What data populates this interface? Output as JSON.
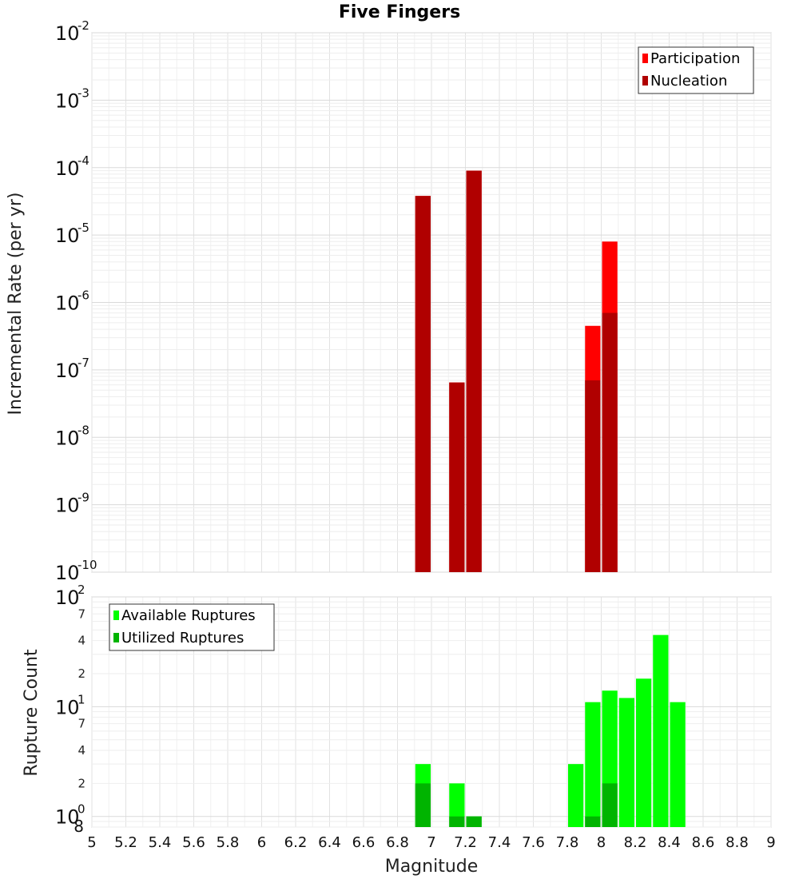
{
  "chart_data": [
    {
      "type": "bar",
      "title": "Five Fingers",
      "xlabel": "",
      "ylabel": "Incremental Rate (per yr)",
      "yscale": "log",
      "ylim": [
        1e-10,
        0.01
      ],
      "xlim": [
        5,
        9
      ],
      "bar_width": 0.1,
      "grid": true,
      "legend_position": "top-right",
      "ytick_labels": [
        {
          "base": "10",
          "exp": "-10",
          "value": 1e-10
        },
        {
          "base": "10",
          "exp": "-9",
          "value": 1e-09
        },
        {
          "base": "10",
          "exp": "-8",
          "value": 1e-08
        },
        {
          "base": "10",
          "exp": "-7",
          "value": 1e-07
        },
        {
          "base": "10",
          "exp": "-6",
          "value": 1e-06
        },
        {
          "base": "10",
          "exp": "-5",
          "value": 1e-05
        },
        {
          "base": "10",
          "exp": "-4",
          "value": 0.0001
        },
        {
          "base": "10",
          "exp": "-3",
          "value": 0.001
        },
        {
          "base": "10",
          "exp": "-2",
          "value": 0.01
        }
      ],
      "series": [
        {
          "name": "Participation",
          "color": "#ff0000",
          "x": [
            6.95,
            7.15,
            7.25,
            7.95,
            8.05
          ],
          "values": [
            3.8e-05,
            6.5e-08,
            9e-05,
            4.5e-07,
            8e-06
          ]
        },
        {
          "name": "Nucleation",
          "color": "#b00000",
          "x": [
            6.95,
            7.15,
            7.25,
            7.95,
            8.05
          ],
          "values": [
            3.8e-05,
            6.5e-08,
            9e-05,
            7e-08,
            7e-07
          ]
        }
      ]
    },
    {
      "type": "bar",
      "title": "",
      "xlabel": "Magnitude",
      "ylabel": "Rupture Count",
      "yscale": "log",
      "ylim": [
        0.8,
        100
      ],
      "xlim": [
        5,
        9
      ],
      "bar_width": 0.1,
      "grid": true,
      "legend_position": "top-left",
      "xticks": [
        "5",
        "5.2",
        "5.4",
        "5.6",
        "5.8",
        "6",
        "6.2",
        "6.4",
        "6.6",
        "6.8",
        "7",
        "7.2",
        "7.4",
        "7.6",
        "7.8",
        "8",
        "8.2",
        "8.4",
        "8.6",
        "8.8",
        "9"
      ],
      "ytick_labels": [
        {
          "base": "10",
          "exp": "0",
          "value": 1
        },
        {
          "base": "10",
          "exp": "1",
          "value": 10
        },
        {
          "base": "10",
          "exp": "2",
          "value": 100
        }
      ],
      "yminor_tick_labels": [
        {
          "label": "8",
          "value": 0.8
        },
        {
          "label": "2",
          "value": 2
        },
        {
          "label": "4",
          "value": 4
        },
        {
          "label": "7",
          "value": 7
        },
        {
          "label": "2",
          "value": 20
        },
        {
          "label": "4",
          "value": 40
        },
        {
          "label": "7",
          "value": 70
        }
      ],
      "series": [
        {
          "name": "Available Ruptures",
          "color": "#00ff00",
          "x": [
            6.95,
            7.15,
            7.25,
            7.85,
            7.95,
            8.05,
            8.15,
            8.25,
            8.35,
            8.45
          ],
          "values": [
            3,
            2,
            1,
            3,
            11,
            14,
            12,
            18,
            45,
            11
          ]
        },
        {
          "name": "Utilized Ruptures",
          "color": "#00b400",
          "x": [
            6.95,
            7.15,
            7.25,
            7.95,
            8.05
          ],
          "values": [
            2,
            1,
            1,
            1,
            2
          ]
        }
      ]
    }
  ]
}
